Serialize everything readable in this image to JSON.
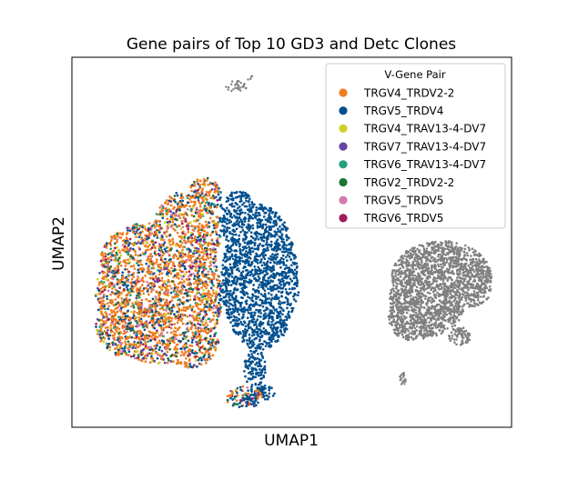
{
  "chart_data": {
    "type": "scatter",
    "title": "Gene pairs of Top 10 GD3 and Detc Clones",
    "xlabel": "UMAP1",
    "ylabel": "UMAP2",
    "xticks": "none",
    "yticks": "none",
    "grid": false,
    "legend_position": "top-right",
    "legend": {
      "title": "V-Gene Pair",
      "entries": [
        {
          "name": "TRGV4_TRDV2-2",
          "color": "#EE7D1E"
        },
        {
          "name": "TRGV5_TRDV4",
          "color": "#03508F"
        },
        {
          "name": "TRGV4_TRAV13-4-DV7",
          "color": "#D1D02A"
        },
        {
          "name": "TRGV7_TRAV13-4-DV7",
          "color": "#6644A2"
        },
        {
          "name": "TRGV6_TRAV13-4-DV7",
          "color": "#22A07B"
        },
        {
          "name": "TRGV2_TRDV2-2",
          "color": "#1C7439"
        },
        {
          "name": "TRGV5_TRDV5",
          "color": "#D47BAE"
        },
        {
          "name": "TRGV6_TRDV5",
          "color": "#9C1C5A"
        }
      ]
    },
    "other_cells_color": "#808080"
  }
}
